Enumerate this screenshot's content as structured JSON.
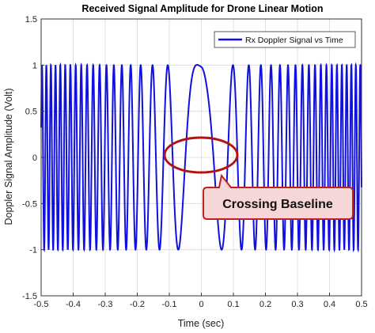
{
  "chart_data": {
    "type": "line",
    "title": "Received Signal Amplitude for Drone Linear Motion",
    "xlabel": "Time (sec)",
    "ylabel": "Doppler Signal Amplitude (Volt)",
    "xlim": [
      -0.5,
      0.5
    ],
    "ylim": [
      -1.5,
      1.5
    ],
    "x_ticks": [
      "-0.5",
      "-0.4",
      "-0.3",
      "-0.2",
      "-0.1",
      "0",
      "0.1",
      "0.2",
      "0.3",
      "0.4",
      "0.5"
    ],
    "y_ticks": [
      "1.5",
      "1",
      "0.5",
      "0",
      "-0.5",
      "-1",
      "-1.5"
    ],
    "x_tick_values": [
      -0.5,
      -0.4,
      -0.3,
      -0.2,
      -0.1,
      0,
      0.1,
      0.2,
      0.3,
      0.4,
      0.5
    ],
    "y_tick_values": [
      1.5,
      1,
      0.5,
      0,
      -0.5,
      -1,
      -1.5
    ],
    "grid": true,
    "legend_position": "top-right",
    "series": [
      {
        "name": "Rx Doppler Signal vs Time",
        "color": "#1010e0",
        "description_formula": "y = sin(2*pi*f(t)*t), chirp with frequency rising as |t| increases",
        "amplitude": 1,
        "x_start": -0.5,
        "x_end": 0.5
      }
    ],
    "annotations": [
      {
        "text": "Crossing Baseline",
        "target_x": 0,
        "target_y": 0
      }
    ]
  }
}
